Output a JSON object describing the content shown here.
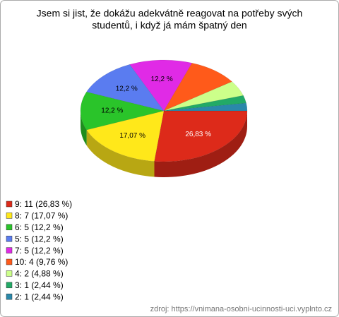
{
  "chart_data": {
    "type": "pie3d",
    "title": [
      "Jsem si jist, že dokážu adekvátně reagovat na potřeby svých",
      "studentů, i když já mám špatný den"
    ],
    "categories": [
      "9: 11 (26,83 %)",
      "8: 7 (17,07 %)",
      "6: 5 (12,2 %)",
      "5: 5 (12,2 %)",
      "7: 5 (12,2 %)",
      "10: 4 (9,76 %)",
      "4: 2 (4,88 %)",
      "3: 1 (2,44 %)",
      "2: 1 (2,44 %)"
    ],
    "values": [
      26.83,
      17.07,
      12.2,
      12.2,
      12.2,
      9.76,
      4.88,
      2.44,
      2.44
    ],
    "value_labels": [
      "26,83 %",
      "17,07 %",
      "12,2 %",
      "12,2 %",
      "12,2 %",
      null,
      null,
      null,
      null
    ],
    "colors": [
      "#dd2a1a",
      "#ffe81a",
      "#2ac42a",
      "#5a7cf0",
      "#e02ae6",
      "#ff5a1a",
      "#ccff8a",
      "#22aa66",
      "#2a88aa"
    ],
    "source": "zdroj: https://vnimana-osobni-ucinnosti-uci.vyplnto.cz"
  }
}
